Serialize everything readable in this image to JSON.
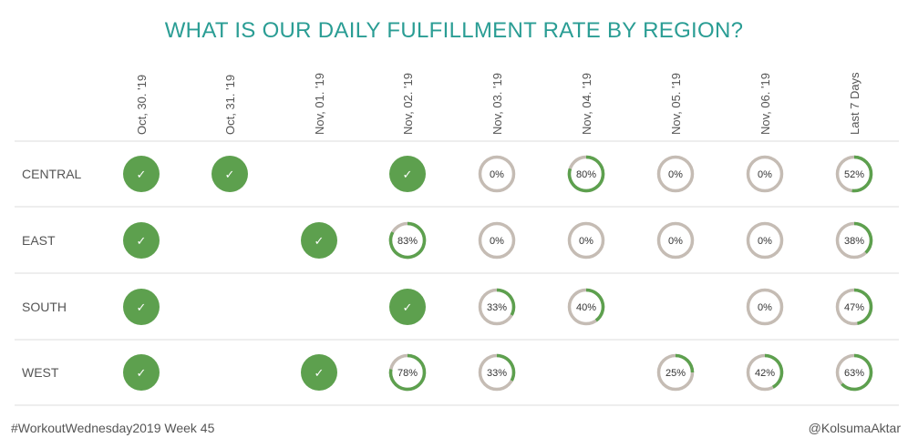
{
  "chart_data": {
    "type": "table",
    "title": "WHAT IS OUR DAILY FULFILLMENT RATE BY REGION?",
    "columns": [
      "Oct, 30. '19",
      "Oct, 31. '19",
      "Nov, 01. '19",
      "Nov, 02. '19",
      "Nov, 03. '19",
      "Nov, 04. '19",
      "Nov, 05. '19",
      "Nov, 06. '19",
      "Last 7 Days"
    ],
    "rows": [
      {
        "region": "CENTRAL",
        "values": [
          100,
          100,
          null,
          100,
          0,
          80,
          0,
          0,
          52
        ]
      },
      {
        "region": "EAST",
        "values": [
          100,
          null,
          100,
          83,
          0,
          0,
          0,
          0,
          38
        ]
      },
      {
        "region": "SOUTH",
        "values": [
          100,
          null,
          null,
          100,
          33,
          40,
          null,
          0,
          47
        ]
      },
      {
        "region": "WEST",
        "values": [
          100,
          null,
          100,
          78,
          33,
          null,
          25,
          42,
          63
        ]
      }
    ],
    "complete_glyph": "✓",
    "complete_marker": "check-icon",
    "colors": {
      "complete": "#5da04e",
      "progress": "#5da04e",
      "track": "#c5bcb4",
      "title": "#2a9d94"
    }
  },
  "footer": {
    "left": "#WorkoutWednesday2019 Week 45",
    "right": "@KolsumaAktar"
  }
}
